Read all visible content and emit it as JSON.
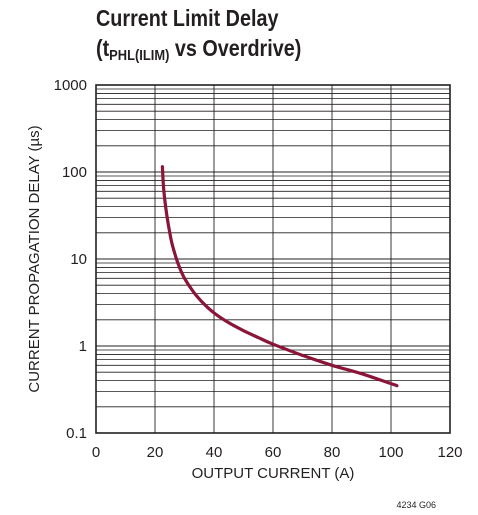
{
  "chart_data": {
    "type": "line",
    "title_line1": "Current Limit Delay",
    "title_line2_prefix": "(t",
    "title_line2_sub": "PHL(ILIM)",
    "title_line2_suffix": " vs Overdrive)",
    "xlabel": "OUTPUT CURRENT (A)",
    "ylabel": "CURRENT PROPAGATION DELAY (µs)",
    "figure_id": "4234 G06",
    "x_ticks": [
      "0",
      "20",
      "40",
      "60",
      "80",
      "100",
      "120"
    ],
    "y_ticks": [
      "0.1",
      "1",
      "10",
      "100",
      "1000"
    ],
    "xlim": [
      0,
      120
    ],
    "ylim": [
      0.1,
      1000
    ],
    "y_scale": "log",
    "grid": true,
    "line_color": "#8b1538",
    "series": [
      {
        "x": [
          22.5,
          23,
          24,
          25,
          26,
          28,
          30,
          33,
          36,
          40,
          45,
          50,
          55,
          60,
          70,
          80,
          90,
          102
        ],
        "y": [
          115,
          60,
          32,
          20,
          14,
          8.5,
          6,
          4.2,
          3.2,
          2.4,
          1.85,
          1.5,
          1.25,
          1.05,
          0.78,
          0.6,
          0.48,
          0.35
        ]
      }
    ]
  }
}
